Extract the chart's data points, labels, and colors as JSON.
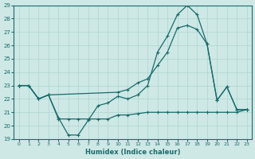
{
  "xlabel": "Humidex (Indice chaleur)",
  "bg_color": "#cde8e5",
  "line_color": "#1a6b6b",
  "grid_color": "#aed4d0",
  "ylim": [
    19,
    29
  ],
  "xlim": [
    -0.5,
    23.5
  ],
  "yticks": [
    19,
    20,
    21,
    22,
    23,
    24,
    25,
    26,
    27,
    28,
    29
  ],
  "xticks": [
    0,
    1,
    2,
    3,
    4,
    5,
    6,
    7,
    8,
    9,
    10,
    11,
    12,
    13,
    14,
    15,
    16,
    17,
    18,
    19,
    20,
    21,
    22,
    23
  ],
  "line1_x": [
    0,
    1,
    2,
    3,
    4,
    5,
    6,
    7,
    8,
    9,
    10,
    11,
    12,
    13,
    14,
    15,
    16,
    17,
    18,
    19,
    20,
    21,
    22,
    23
  ],
  "line1_y": [
    23,
    23,
    22,
    22.3,
    20.6,
    19.3,
    19.3,
    20.4,
    21.5,
    21.7,
    22.2,
    22.0,
    22.3,
    23.0,
    25.5,
    26.7,
    28.3,
    29.0,
    28.3,
    26.1,
    21.9,
    22.9,
    21.2,
    21.2
  ],
  "line2_x": [
    0,
    1,
    2,
    3,
    10,
    11,
    12,
    13,
    14,
    15,
    16,
    17,
    18,
    19,
    20,
    21,
    22,
    23
  ],
  "line2_y": [
    23,
    23,
    22,
    22.3,
    22.5,
    22.7,
    23.2,
    23.5,
    24.5,
    25.5,
    27.3,
    27.5,
    27.2,
    26.1,
    21.9,
    22.9,
    21.2,
    21.2
  ],
  "line3_x": [
    0,
    1,
    2,
    3,
    4,
    5,
    6,
    7,
    8,
    9,
    10,
    11,
    12,
    13,
    14,
    15,
    16,
    17,
    18,
    19,
    20,
    21,
    22,
    23
  ],
  "line3_y": [
    23,
    23,
    22,
    22.3,
    20.5,
    20.5,
    20.5,
    20.5,
    20.5,
    20.5,
    20.8,
    20.8,
    20.9,
    21.0,
    21.0,
    21.0,
    21.0,
    21.0,
    21.0,
    21.0,
    21.0,
    21.0,
    21.0,
    21.2
  ]
}
